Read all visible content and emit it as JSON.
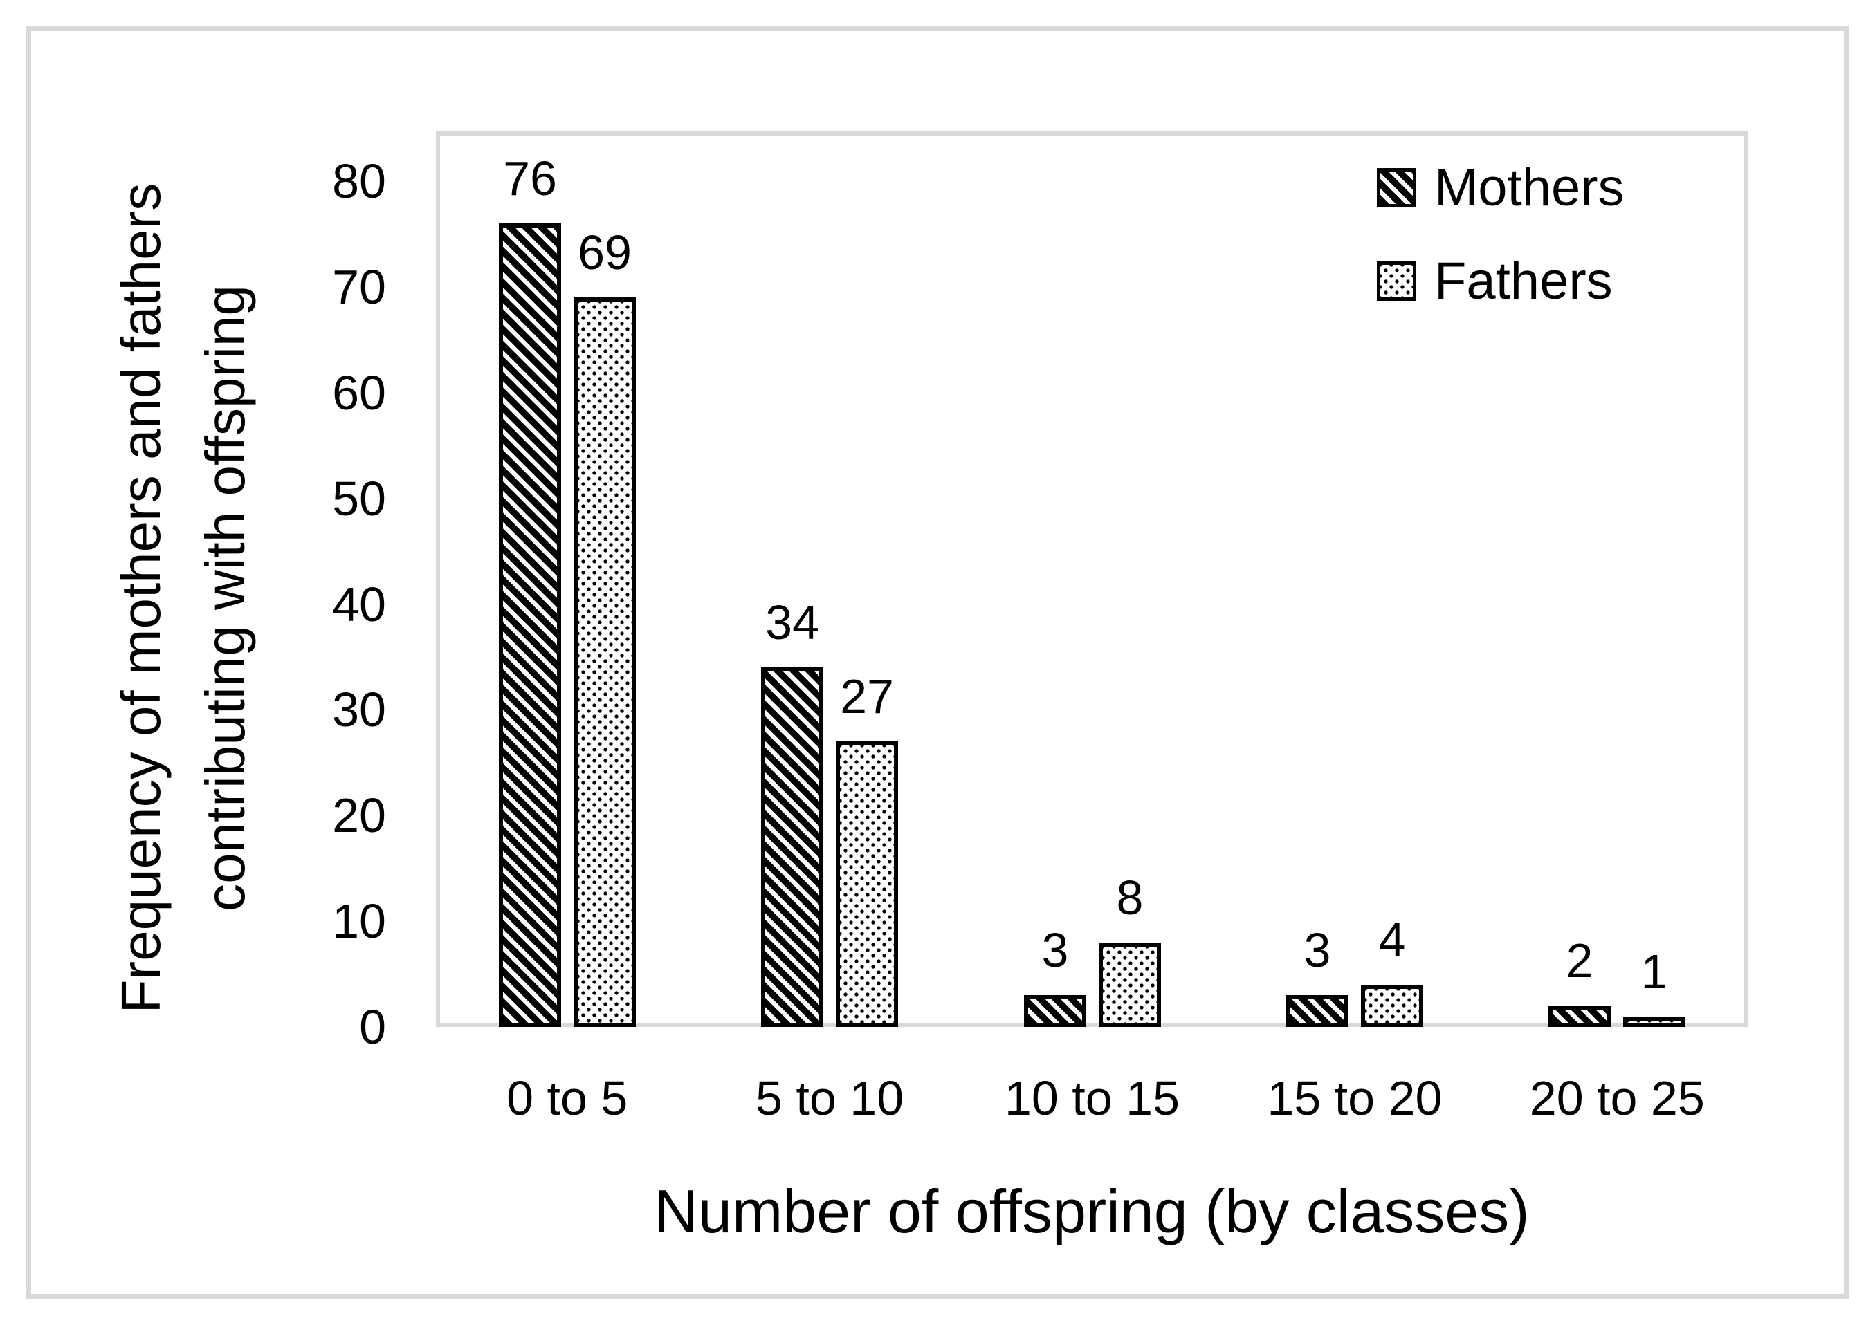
{
  "figure": {
    "background_color": "#ffffff",
    "frame_color": "#d9d9d9",
    "text_color": "#000000"
  },
  "chart_data": {
    "type": "bar",
    "title": "",
    "categories": [
      "0 to 5",
      "5 to 10",
      "10 to 15",
      "15 to 20",
      "20 to 25"
    ],
    "series": [
      {
        "name": "Mothers",
        "pattern": "black-diagonal-stripes",
        "values": [
          76,
          34,
          3,
          3,
          2
        ]
      },
      {
        "name": "Fathers",
        "pattern": "black-dots-on-white",
        "values": [
          69,
          27,
          8,
          4,
          1
        ]
      }
    ],
    "xlabel": "Number of offspring (by classes)",
    "ylabel": "Frequency of mothers and fathers contributing with offspring",
    "ylabel_lines": [
      "Frequency of mothers and fathers",
      "contributing with offspring"
    ],
    "yticks": [
      0,
      10,
      20,
      30,
      40,
      50,
      60,
      70,
      80
    ],
    "ylim": [
      0,
      80
    ],
    "grid": false,
    "legend_position": "top-right-inside",
    "bar_value_labels": true,
    "axis_color": "#d9d9d9",
    "bar_outline_color": "#000000"
  }
}
